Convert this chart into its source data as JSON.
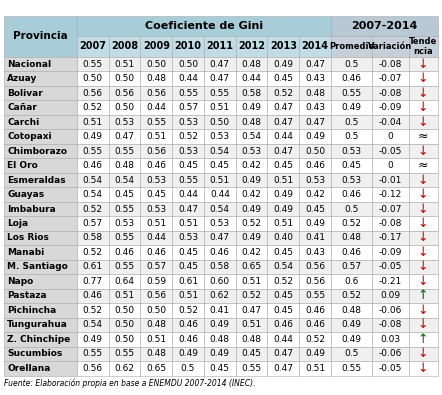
{
  "rows": [
    [
      "Nacional",
      "0.55",
      "0.51",
      "0.50",
      "0.50",
      "0.47",
      "0.48",
      "0.49",
      "0.47",
      "0.5",
      "-0.08",
      "↓"
    ],
    [
      "Azuay",
      "0.50",
      "0.50",
      "0.48",
      "0.44",
      "0.47",
      "0.44",
      "0.45",
      "0.43",
      "0.46",
      "-0.07",
      "↓"
    ],
    [
      "Bolivar",
      "0.56",
      "0.56",
      "0.56",
      "0.55",
      "0.55",
      "0.58",
      "0.52",
      "0.48",
      "0.55",
      "-0.08",
      "↓"
    ],
    [
      "Cañar",
      "0.52",
      "0.50",
      "0.44",
      "0.57",
      "0.51",
      "0.49",
      "0.47",
      "0.43",
      "0.49",
      "-0.09",
      "↓"
    ],
    [
      "Carchi",
      "0.51",
      "0.53",
      "0.55",
      "0.53",
      "0.50",
      "0.48",
      "0.47",
      "0.47",
      "0.5",
      "-0.04",
      "↓"
    ],
    [
      "Cotopaxi",
      "0.49",
      "0.47",
      "0.51",
      "0.52",
      "0.53",
      "0.54",
      "0.44",
      "0.49",
      "0.5",
      "0",
      "≈"
    ],
    [
      "Chimborazo",
      "0.55",
      "0.55",
      "0.56",
      "0.53",
      "0.54",
      "0.53",
      "0.47",
      "0.50",
      "0.53",
      "-0.05",
      "↓"
    ],
    [
      "El Oro",
      "0.46",
      "0.48",
      "0.46",
      "0.45",
      "0.45",
      "0.42",
      "0.45",
      "0.46",
      "0.45",
      "0",
      "≈"
    ],
    [
      "Esmeraldas",
      "0.54",
      "0.54",
      "0.53",
      "0.55",
      "0.51",
      "0.49",
      "0.51",
      "0.53",
      "0.53",
      "-0.01",
      "↓"
    ],
    [
      "Guayas",
      "0.54",
      "0.45",
      "0.45",
      "0.44",
      "0.44",
      "0.42",
      "0.49",
      "0.42",
      "0.46",
      "-0.12",
      "↓"
    ],
    [
      "Imbabura",
      "0.52",
      "0.55",
      "0.53",
      "0.47",
      "0.54",
      "0.49",
      "0.49",
      "0.45",
      "0.5",
      "-0.07",
      "↓"
    ],
    [
      "Loja",
      "0.57",
      "0.53",
      "0.51",
      "0.51",
      "0.53",
      "0.52",
      "0.51",
      "0.49",
      "0.52",
      "-0.08",
      "↓"
    ],
    [
      "Los Rios",
      "0.58",
      "0.55",
      "0.44",
      "0.53",
      "0.47",
      "0.49",
      "0.40",
      "0.41",
      "0.48",
      "-0.17",
      "↓"
    ],
    [
      "Manabi",
      "0.52",
      "0.46",
      "0.46",
      "0.45",
      "0.46",
      "0.42",
      "0.45",
      "0.43",
      "0.46",
      "-0.09",
      "↓"
    ],
    [
      "M. Santiago",
      "0.61",
      "0.55",
      "0.57",
      "0.45",
      "0.58",
      "0.65",
      "0.54",
      "0.56",
      "0.57",
      "-0.05",
      "↓"
    ],
    [
      "Napo",
      "0.77",
      "0.64",
      "0.59",
      "0.61",
      "0.60",
      "0.51",
      "0.52",
      "0.56",
      "0.6",
      "-0.21",
      "↓"
    ],
    [
      "Pastaza",
      "0.46",
      "0.51",
      "0.56",
      "0.51",
      "0.62",
      "0.52",
      "0.45",
      "0.55",
      "0.52",
      "0.09",
      "↑"
    ],
    [
      "Pichincha",
      "0.52",
      "0.50",
      "0.50",
      "0.52",
      "0.41",
      "0.47",
      "0.45",
      "0.46",
      "0.48",
      "-0.06",
      "↓"
    ],
    [
      "Tungurahua",
      "0.54",
      "0.50",
      "0.48",
      "0.46",
      "0.49",
      "0.51",
      "0.46",
      "0.46",
      "0.49",
      "-0.08",
      "↓"
    ],
    [
      "Z. Chinchipe",
      "0.49",
      "0.50",
      "0.51",
      "0.46",
      "0.48",
      "0.48",
      "0.44",
      "0.52",
      "0.49",
      "0.03",
      "↑"
    ],
    [
      "Sucumbios",
      "0.55",
      "0.55",
      "0.48",
      "0.49",
      "0.49",
      "0.45",
      "0.47",
      "0.49",
      "0.5",
      "-0.06",
      "↓"
    ],
    [
      "Orellana",
      "0.56",
      "0.62",
      "0.65",
      "0.5",
      "0.45",
      "0.55",
      "0.47",
      "0.51",
      "0.55",
      "-0.05",
      "↓"
    ]
  ],
  "footer": "Fuente: Elaboración propia en base a ENEMDU 2007-2014 (INEC).",
  "col_header_bg": "#A8CDD8",
  "col_header_summary_bg": "#B8C8D5",
  "subheader_bg": "#C2DCE6",
  "subheader_summary_bg": "#C5D0DA",
  "primera_col_bg": "#D8D8D8",
  "row_bg_even": "#F0F0F0",
  "row_bg_odd": "#FFFFFF",
  "border_color": "#AAAAAA"
}
